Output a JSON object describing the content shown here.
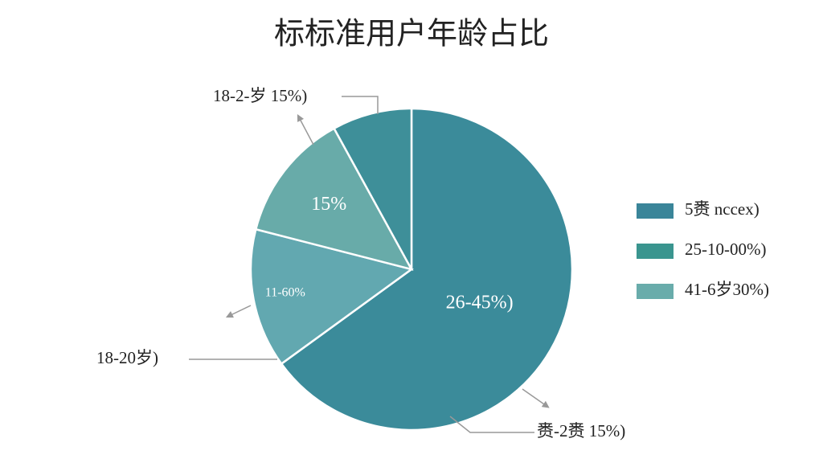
{
  "chart_data": {
    "type": "pie",
    "title": "标标准用户年龄占比",
    "values": [
      65,
      14,
      13,
      8
    ],
    "colors": [
      "#3b8b9a",
      "#62a8b0",
      "#68aba9",
      "#3e8f99"
    ],
    "slice_labels": [
      "26-45%)",
      "11-60%",
      "15%",
      null
    ],
    "callouts": [
      "18-2-岁 15%)",
      "18-20岁)",
      "赉-2赉 15%)"
    ],
    "legend": [
      {
        "name": "5赉 nccex)",
        "color": "#3a8599"
      },
      {
        "name": "25-10-00%)",
        "color": "#3a958f"
      },
      {
        "name": "41-6岁30%)",
        "color": "#69acab"
      }
    ]
  }
}
